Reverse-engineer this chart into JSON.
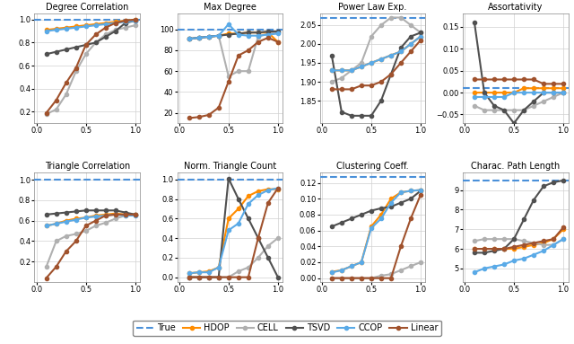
{
  "x_vals": [
    0.1,
    0.2,
    0.3,
    0.4,
    0.5,
    0.6,
    0.7,
    0.8,
    0.9,
    1.0
  ],
  "subplots": [
    {
      "title": "Degree Correlation",
      "ylim": [
        0.1,
        1.05
      ],
      "yticks": [
        0.2,
        0.4,
        0.6,
        0.8,
        1.0
      ],
      "true_val": 1.0,
      "series": {
        "HDOP": [
          0.91,
          0.92,
          0.93,
          0.94,
          0.95,
          0.96,
          0.97,
          0.98,
          0.99,
          1.0
        ],
        "CELL": [
          0.18,
          0.22,
          0.35,
          0.55,
          0.7,
          0.8,
          0.87,
          0.91,
          0.93,
          0.95
        ],
        "TSVD": [
          0.7,
          0.72,
          0.74,
          0.76,
          0.78,
          0.8,
          0.85,
          0.9,
          0.97,
          0.99
        ],
        "CCOP": [
          0.9,
          0.91,
          0.92,
          0.93,
          0.94,
          0.95,
          0.96,
          0.97,
          0.98,
          0.99
        ],
        "Linear": [
          0.19,
          0.3,
          0.45,
          0.58,
          0.78,
          0.87,
          0.93,
          0.97,
          0.99,
          1.0
        ]
      }
    },
    {
      "title": "Max Degree",
      "ylim": [
        10,
        115
      ],
      "yticks": [
        20,
        40,
        60,
        80,
        100
      ],
      "true_val": 100,
      "series": {
        "HDOP": [
          91,
          92,
          93,
          94,
          96,
          96,
          97,
          97,
          97,
          88
        ],
        "CELL": [
          91,
          92,
          93,
          94,
          55,
          60,
          60,
          93,
          96,
          97
        ],
        "TSVD": [
          91,
          92,
          93,
          94,
          95,
          96,
          97,
          97,
          98,
          98
        ],
        "CCOP": [
          91,
          92,
          93,
          94,
          105,
          95,
          94,
          94,
          95,
          96
        ],
        "Linear": [
          15,
          16,
          18,
          25,
          50,
          75,
          80,
          88,
          92,
          88
        ]
      }
    },
    {
      "title": "Power Law Exp.",
      "ylim": [
        1.79,
        2.08
      ],
      "yticks": [
        1.85,
        1.9,
        1.95,
        2.0,
        2.05
      ],
      "true_val": 2.07,
      "series": {
        "HDOP": [
          1.93,
          1.93,
          1.93,
          1.94,
          1.95,
          1.96,
          1.97,
          1.98,
          2.0,
          2.02
        ],
        "CELL": [
          1.9,
          1.91,
          1.93,
          1.95,
          2.02,
          2.05,
          2.07,
          2.07,
          2.05,
          2.03
        ],
        "TSVD": [
          1.97,
          1.82,
          1.81,
          1.81,
          1.81,
          1.85,
          1.92,
          1.99,
          2.02,
          2.03
        ],
        "CCOP": [
          1.93,
          1.93,
          1.93,
          1.94,
          1.95,
          1.96,
          1.97,
          1.98,
          2.0,
          2.02
        ],
        "Linear": [
          1.88,
          1.88,
          1.88,
          1.89,
          1.89,
          1.9,
          1.92,
          1.95,
          1.98,
          2.01
        ]
      }
    },
    {
      "title": "Assortativity",
      "ylim": [
        -0.07,
        0.18
      ],
      "yticks": [
        -0.05,
        0.0,
        0.05,
        0.1,
        0.15
      ],
      "true_val": 0.01,
      "series": {
        "HDOP": [
          0.0,
          0.0,
          0.0,
          0.0,
          0.0,
          0.01,
          0.01,
          0.01,
          0.01,
          0.01
        ],
        "CELL": [
          -0.03,
          -0.04,
          -0.04,
          -0.04,
          -0.04,
          -0.04,
          -0.03,
          -0.02,
          -0.01,
          0.0
        ],
        "TSVD": [
          0.16,
          0.0,
          -0.03,
          -0.04,
          -0.07,
          -0.04,
          -0.02,
          0.0,
          0.0,
          0.0
        ],
        "CCOP": [
          -0.01,
          -0.01,
          -0.01,
          -0.01,
          0.0,
          0.0,
          0.0,
          0.0,
          0.0,
          0.0
        ],
        "Linear": [
          0.03,
          0.03,
          0.03,
          0.03,
          0.03,
          0.03,
          0.03,
          0.02,
          0.02,
          0.02
        ]
      }
    },
    {
      "title": "Triangle Correlation",
      "ylim": [
        0.0,
        1.07
      ],
      "yticks": [
        0.2,
        0.4,
        0.6,
        0.8,
        1.0
      ],
      "true_val": 1.0,
      "series": {
        "HDOP": [
          0.55,
          0.57,
          0.6,
          0.62,
          0.63,
          0.65,
          0.66,
          0.67,
          0.66,
          0.66
        ],
        "CELL": [
          0.15,
          0.4,
          0.45,
          0.47,
          0.5,
          0.55,
          0.58,
          0.62,
          0.65,
          0.66
        ],
        "TSVD": [
          0.66,
          0.67,
          0.68,
          0.69,
          0.7,
          0.7,
          0.7,
          0.7,
          0.68,
          0.66
        ],
        "CCOP": [
          0.55,
          0.57,
          0.59,
          0.61,
          0.63,
          0.64,
          0.65,
          0.66,
          0.65,
          0.65
        ],
        "Linear": [
          0.04,
          0.15,
          0.3,
          0.4,
          0.55,
          0.6,
          0.65,
          0.66,
          0.66,
          0.66
        ]
      }
    },
    {
      "title": "Norm. Triangle Count",
      "ylim": [
        -0.05,
        1.07
      ],
      "yticks": [
        0.0,
        0.2,
        0.4,
        0.6,
        0.8,
        1.0
      ],
      "true_val": 1.0,
      "series": {
        "HDOP": [
          0.04,
          0.05,
          0.06,
          0.1,
          0.6,
          0.7,
          0.83,
          0.88,
          0.9,
          0.9
        ],
        "CELL": [
          0.0,
          0.0,
          0.0,
          0.0,
          0.0,
          0.06,
          0.1,
          0.2,
          0.32,
          0.4
        ],
        "TSVD": [
          0.0,
          0.0,
          0.0,
          0.0,
          1.01,
          0.8,
          0.6,
          0.4,
          0.2,
          0.0
        ],
        "CCOP": [
          0.04,
          0.05,
          0.05,
          0.1,
          0.48,
          0.55,
          0.75,
          0.84,
          0.89,
          0.91
        ],
        "Linear": [
          0.0,
          0.0,
          0.0,
          0.0,
          0.0,
          0.0,
          0.0,
          0.4,
          0.76,
          0.91
        ]
      }
    },
    {
      "title": "Clustering Coeff.",
      "ylim": [
        -0.005,
        0.133
      ],
      "yticks": [
        0.0,
        0.02,
        0.04,
        0.06,
        0.08,
        0.1,
        0.12
      ],
      "true_val": 0.128,
      "series": {
        "HDOP": [
          0.008,
          0.01,
          0.015,
          0.02,
          0.065,
          0.08,
          0.1,
          0.108,
          0.11,
          0.111
        ],
        "CELL": [
          0.0,
          0.0,
          0.0,
          0.0,
          0.0,
          0.003,
          0.005,
          0.01,
          0.015,
          0.02
        ],
        "TSVD": [
          0.065,
          0.07,
          0.075,
          0.08,
          0.085,
          0.088,
          0.09,
          0.095,
          0.1,
          0.11
        ],
        "CCOP": [
          0.007,
          0.01,
          0.015,
          0.02,
          0.063,
          0.075,
          0.095,
          0.108,
          0.11,
          0.111
        ],
        "Linear": [
          0.0,
          0.0,
          0.0,
          0.0,
          0.0,
          0.0,
          0.0,
          0.04,
          0.075,
          0.105
        ]
      }
    },
    {
      "title": "Charac. Path Length",
      "ylim": [
        4.3,
        9.9
      ],
      "yticks": [
        5,
        6,
        7,
        8,
        9
      ],
      "true_val": 9.5,
      "series": {
        "HDOP": [
          6.0,
          6.0,
          6.0,
          6.0,
          6.0,
          6.1,
          6.2,
          6.3,
          6.5,
          7.0
        ],
        "CELL": [
          6.4,
          6.5,
          6.5,
          6.5,
          6.5,
          6.4,
          6.3,
          6.2,
          6.2,
          6.5
        ],
        "TSVD": [
          5.8,
          5.8,
          5.9,
          6.0,
          6.5,
          7.5,
          8.5,
          9.2,
          9.4,
          9.5
        ],
        "CCOP": [
          4.8,
          5.0,
          5.1,
          5.2,
          5.4,
          5.5,
          5.7,
          5.9,
          6.2,
          6.5
        ],
        "Linear": [
          6.0,
          6.0,
          6.0,
          6.0,
          6.1,
          6.2,
          6.3,
          6.4,
          6.5,
          7.1
        ]
      }
    }
  ],
  "colors": {
    "True": "#4a90d9",
    "HDOP": "#ff8c00",
    "CELL": "#b0b0b0",
    "TSVD": "#505050",
    "CCOP": "#5aaae7",
    "Linear": "#a0522d"
  },
  "marker": "o",
  "markersize": 3,
  "linewidth": 1.5,
  "figsize": [
    6.4,
    3.83
  ],
  "dpi": 100
}
